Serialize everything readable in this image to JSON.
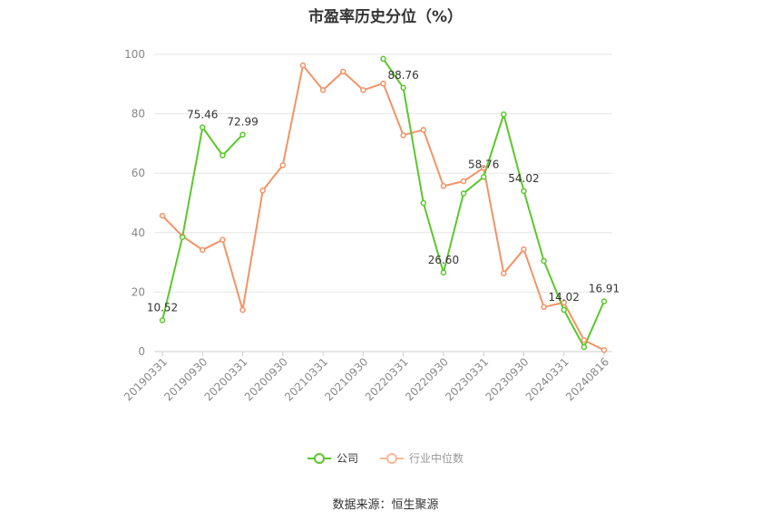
{
  "chart_data": {
    "type": "line",
    "title": "市盈率历史分位（%）",
    "ylim": [
      0,
      100
    ],
    "yticks": [
      0,
      20,
      40,
      60,
      80,
      100
    ],
    "x_tick_labels": [
      "20190331",
      "20190930",
      "20200331",
      "20200930",
      "20210331",
      "20210930",
      "20220331",
      "20220930",
      "20230331",
      "20230930",
      "20240331",
      "20240816"
    ],
    "x": [
      "20190331",
      "20190630",
      "20190930",
      "20191231",
      "20200331",
      "20200630",
      "20200930",
      "20201231",
      "20210331",
      "20210630",
      "20210930",
      "20211231",
      "20220331",
      "20220630",
      "20220930",
      "20221231",
      "20230331",
      "20230630",
      "20230930",
      "20231231",
      "20240331",
      "20240630",
      "20240816"
    ],
    "series": [
      {
        "name": "公司",
        "color": "#5bc72b",
        "values": [
          10.52,
          38.5,
          75.46,
          66.0,
          72.99,
          null,
          null,
          null,
          null,
          null,
          null,
          98.5,
          88.76,
          50.0,
          26.6,
          53.2,
          58.76,
          79.8,
          54.02,
          30.5,
          14.02,
          1.5,
          16.91
        ],
        "data_labels": {
          "0": "10.52",
          "2": "75.46",
          "4": "72.99",
          "12": "88.76",
          "14": "26.60",
          "16": "58.76",
          "18": "54.02",
          "20": "14.02",
          "22": "16.91"
        }
      },
      {
        "name": "行业中位数",
        "color": "#f39366",
        "values": [
          45.7,
          38.8,
          34.2,
          37.6,
          14.0,
          54.2,
          62.7,
          96.3,
          88.0,
          94.2,
          88.0,
          90.2,
          72.8,
          74.6,
          55.7,
          57.3,
          61.8,
          26.3,
          34.4,
          15.0,
          16.5,
          3.8,
          0.5
        ]
      }
    ],
    "legend_position": "bottom"
  },
  "source": "数据来源：恒生聚源"
}
